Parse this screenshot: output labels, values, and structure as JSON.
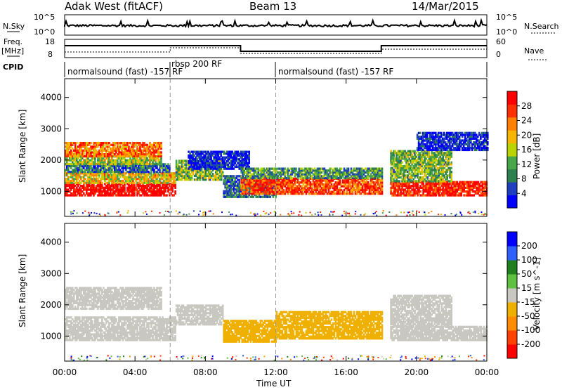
{
  "header": {
    "station": "Adak West (fitACF)",
    "beam": "Beam 13",
    "date": "14/Mar/2015"
  },
  "top_panels": {
    "nsky_label": "N.Sky",
    "nsky_ticks": [
      "10^5",
      "10^0"
    ],
    "nsearch_label": "N.Search",
    "freq_label_1": "Freq.",
    "freq_label_2": "[MHz]",
    "freq_ticks": [
      "18",
      "8"
    ],
    "nave_label": "Nave",
    "nave_ticks": [
      "60",
      "0"
    ],
    "cpid_label": "CPID",
    "cpid_segments": [
      {
        "label": "normalsound (fast) -157 RF",
        "start": 0,
        "end": 6
      },
      {
        "label": "rbsp 200 RF",
        "start": 6,
        "end": 12
      },
      {
        "label": "normalsound (fast) -157 RF",
        "start": 12,
        "end": 24
      }
    ]
  },
  "chart_data": [
    {
      "type": "heatmap",
      "title": "",
      "xlabel": "Time UT",
      "ylabel": "Slant Range [km]",
      "xlim": [
        0,
        24
      ],
      "ylim": [
        200,
        4600
      ],
      "x_ticks": [
        "00:00",
        "04:00",
        "08:00",
        "12:00",
        "16:00",
        "20:00",
        "00:00"
      ],
      "y_ticks": [
        "1000",
        "2000",
        "3000",
        "4000"
      ],
      "colorbar": {
        "label": "Power [dB]",
        "ticks": [
          "28",
          "24",
          "20",
          "16",
          "12",
          "8",
          "4"
        ],
        "colors": [
          "#0000ff",
          "#1f3fbf",
          "#2e7f4f",
          "#48a64a",
          "#b9d400",
          "#f7b500",
          "#ff7f00",
          "#ff3000",
          "#ff0000"
        ]
      },
      "bands": [
        {
          "t0": 0.0,
          "t1": 6.3,
          "r0": 850,
          "r1": 1250,
          "level": 28
        },
        {
          "t0": 0.0,
          "t1": 6.3,
          "r0": 1250,
          "r1": 1600,
          "level": 18
        },
        {
          "t0": 0.0,
          "t1": 6.0,
          "r0": 1600,
          "r1": 1850,
          "level": 10
        },
        {
          "t0": 0.0,
          "t1": 5.5,
          "r0": 1850,
          "r1": 2100,
          "level": 16
        },
        {
          "t0": 0.0,
          "t1": 5.5,
          "r0": 2100,
          "r1": 2550,
          "level": 22
        },
        {
          "t0": 6.3,
          "t1": 9.0,
          "r0": 1350,
          "r1": 2000,
          "level": 14
        },
        {
          "t0": 7.0,
          "t1": 10.5,
          "r0": 1700,
          "r1": 2250,
          "level": 6
        },
        {
          "t0": 9.0,
          "t1": 12.0,
          "r0": 800,
          "r1": 1500,
          "level": 10
        },
        {
          "t0": 10.0,
          "t1": 18.0,
          "r0": 900,
          "r1": 1400,
          "level": 24
        },
        {
          "t0": 10.0,
          "t1": 18.0,
          "r0": 1400,
          "r1": 1750,
          "level": 12
        },
        {
          "t0": 18.5,
          "t1": 24.0,
          "r0": 850,
          "r1": 1300,
          "level": 26
        },
        {
          "t0": 18.5,
          "t1": 22.0,
          "r0": 1300,
          "r1": 2300,
          "level": 14
        },
        {
          "t0": 20.0,
          "t1": 24.0,
          "r0": 2300,
          "r1": 2900,
          "level": 6
        }
      ]
    },
    {
      "type": "heatmap",
      "title": "",
      "xlabel": "Time UT",
      "ylabel": "Slant Range [km]",
      "xlim": [
        0,
        24
      ],
      "ylim": [
        200,
        4600
      ],
      "x_ticks": [
        "00:00",
        "04:00",
        "08:00",
        "12:00",
        "16:00",
        "20:00",
        "00:00"
      ],
      "y_ticks": [
        "1000",
        "2000",
        "3000",
        "4000"
      ],
      "colorbar": {
        "label": "Velocity [m s^-1]",
        "ticks": [
          "200",
          "100",
          "50",
          "15",
          "-15",
          "-50",
          "-100",
          "-200"
        ],
        "colors": [
          "#ff0000",
          "#ff4000",
          "#ff8c00",
          "#f0b000",
          "#c8c8c0",
          "#60c040",
          "#208020",
          "#3060ff",
          "#0000ff"
        ]
      },
      "bands": [
        {
          "t0": 0.0,
          "t1": 6.3,
          "r0": 850,
          "r1": 1600,
          "level": 0
        },
        {
          "t0": 0.0,
          "t1": 5.5,
          "r0": 1850,
          "r1": 2550,
          "level": 0
        },
        {
          "t0": 6.3,
          "t1": 9.0,
          "r0": 1350,
          "r1": 2000,
          "level": 0
        },
        {
          "t0": 9.0,
          "t1": 12.0,
          "r0": 800,
          "r1": 1500,
          "level": -40
        },
        {
          "t0": 12.0,
          "t1": 18.0,
          "r0": 900,
          "r1": 1750,
          "level": -40
        },
        {
          "t0": 18.5,
          "t1": 24.0,
          "r0": 850,
          "r1": 1300,
          "level": 0
        },
        {
          "t0": 18.5,
          "t1": 22.0,
          "r0": 1300,
          "r1": 2300,
          "level": 0
        }
      ]
    }
  ]
}
